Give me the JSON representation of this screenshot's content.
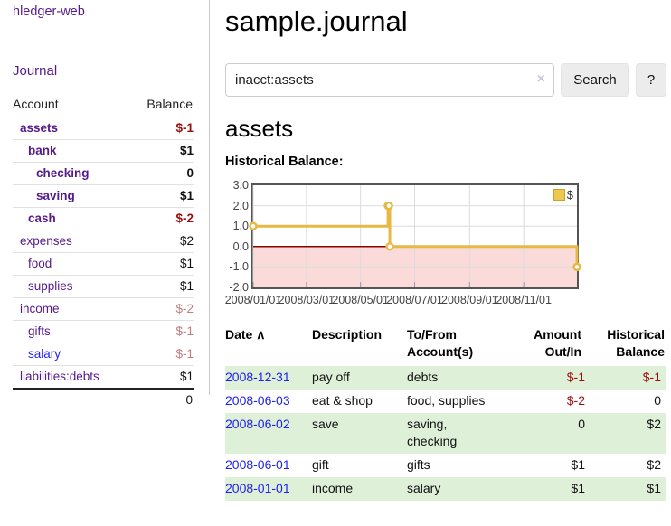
{
  "app": {
    "brand": "hledger-web",
    "nav_journal": "Journal"
  },
  "sidebar": {
    "table_headers": {
      "account": "Account",
      "balance": "Balance"
    },
    "accounts": [
      {
        "name": "assets",
        "depth": 0,
        "bold": true,
        "balance": "$-1"
      },
      {
        "name": "bank",
        "depth": 1,
        "bold": true,
        "balance": "$1"
      },
      {
        "name": "checking",
        "depth": 2,
        "bold": true,
        "balance": "0"
      },
      {
        "name": "saving",
        "depth": 2,
        "bold": true,
        "balance": "$1"
      },
      {
        "name": "cash",
        "depth": 1,
        "bold": true,
        "balance": "$-2"
      },
      {
        "name": "expenses",
        "depth": 0,
        "bold": false,
        "balance": "$2"
      },
      {
        "name": "food",
        "depth": 1,
        "bold": false,
        "balance": "$1"
      },
      {
        "name": "supplies",
        "depth": 1,
        "bold": false,
        "balance": "$1"
      },
      {
        "name": "income",
        "depth": 0,
        "bold": false,
        "balance": "$-2"
      },
      {
        "name": "gifts",
        "depth": 1,
        "bold": false,
        "balance": "$-1"
      },
      {
        "name": "salary",
        "depth": 1,
        "bold": false,
        "balance": "$-1",
        "link_color": "blue"
      },
      {
        "name": "liabilities:debts",
        "depth": 0,
        "bold": false,
        "balance": "$1"
      }
    ],
    "total": "0"
  },
  "main": {
    "title": "sample.journal",
    "search": {
      "value": "inacct:assets",
      "clear_icon": "×",
      "button": "Search",
      "help_button": "?"
    },
    "account_heading": "assets",
    "chart_heading": "Historical Balance:"
  },
  "chart_data": {
    "type": "line",
    "title": "Historical Balance:",
    "series_label": "$",
    "ylim": [
      -2,
      3
    ],
    "yticks": [
      "3.0",
      "2.0",
      "1.0",
      "0.0",
      "-1.0",
      "-2.0"
    ],
    "xticks": [
      {
        "label": "2008/01/01",
        "day": 0
      },
      {
        "label": "2008/03/01",
        "day": 60
      },
      {
        "label": "2008/05/01",
        "day": 121
      },
      {
        "label": "2008/07/01",
        "day": 182
      },
      {
        "label": "2008/09/01",
        "day": 244
      },
      {
        "label": "2008/11/01",
        "day": 305
      }
    ],
    "x_domain_days": 365,
    "points": [
      {
        "date": "2008-01-01",
        "day": 0,
        "value": 1
      },
      {
        "date": "2008-06-01",
        "day": 152,
        "value": 2
      },
      {
        "date": "2008-06-02",
        "day": 153,
        "value": 2
      },
      {
        "date": "2008-06-03",
        "day": 154,
        "value": 0
      },
      {
        "date": "2008-12-31",
        "day": 365,
        "value": -1
      }
    ],
    "colors": {
      "line": "#e6b944",
      "marker_fill": "#ffffff",
      "below_zero_fill": "#fbdada",
      "zero_line": "#8b0000",
      "grid": "#dcdcdc",
      "border": "#545454",
      "tick": "#999999"
    }
  },
  "register": {
    "headers": {
      "date": "Date",
      "sort_icon": "∧",
      "description": "Description",
      "accounts": "To/From Account(s)",
      "amount": "Amount Out/In",
      "balance": "Historical Balance"
    },
    "rows": [
      {
        "date": "2008-12-31",
        "description": "pay off",
        "accounts": [
          "debts"
        ],
        "amount": "$-1",
        "balance": "$-1"
      },
      {
        "date": "2008-06-03",
        "description": "eat & shop",
        "accounts": [
          "food",
          "supplies"
        ],
        "amount": "$-2",
        "balance": "0"
      },
      {
        "date": "2008-06-02",
        "description": "save",
        "accounts": [
          "saving",
          "checking"
        ],
        "amount": "0",
        "balance": "$2"
      },
      {
        "date": "2008-06-01",
        "description": "gift",
        "accounts": [
          "gifts"
        ],
        "amount": "$1",
        "balance": "$2"
      },
      {
        "date": "2008-01-01",
        "description": "income",
        "accounts": [
          "salary"
        ],
        "amount": "$1",
        "balance": "$1"
      }
    ]
  }
}
